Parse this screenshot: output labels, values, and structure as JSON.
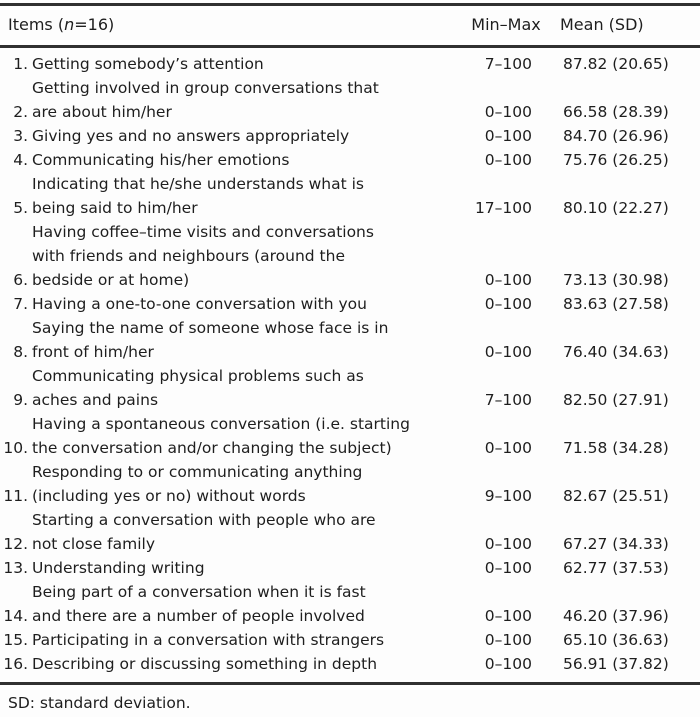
{
  "table": {
    "header": {
      "items_pre": "Items (",
      "items_n": "n",
      "items_post": "=16)",
      "minmax": "Min–Max",
      "mean": "Mean (SD)"
    },
    "rows": [
      {
        "num": "1.",
        "item": "Getting somebody’s attention",
        "minmax": "7–100",
        "mean": "87.82 (20.65)"
      },
      {
        "num": "2.",
        "item": "Getting involved in group conversations that\nare about him/her",
        "minmax": "0–100",
        "mean": "66.58 (28.39)"
      },
      {
        "num": "3.",
        "item": "Giving yes and no answers appropriately",
        "minmax": "0–100",
        "mean": "84.70 (26.96)"
      },
      {
        "num": "4.",
        "item": "Communicating his/her emotions",
        "minmax": "0–100",
        "mean": "75.76 (26.25)"
      },
      {
        "num": "5.",
        "item": "Indicating that he/she understands what is\nbeing said to him/her",
        "minmax": "17–100",
        "mean": "80.10 (22.27)"
      },
      {
        "num": "6.",
        "item": "Having coffee–time visits and conversations\nwith friends and neighbours (around the\nbedside or at home)",
        "minmax": "0–100",
        "mean": "73.13 (30.98)"
      },
      {
        "num": "7.",
        "item": "Having a one-to-one conversation with you",
        "minmax": "0–100",
        "mean": "83.63 (27.58)"
      },
      {
        "num": "8.",
        "item": "Saying the name of someone whose face is in\nfront of him/her",
        "minmax": "0–100",
        "mean": "76.40 (34.63)"
      },
      {
        "num": "9.",
        "item": "Communicating physical problems such as\naches and pains",
        "minmax": "7–100",
        "mean": "82.50 (27.91)"
      },
      {
        "num": "10.",
        "item": "Having a spontaneous conversation (i.e. starting\nthe conversation and/or changing the subject)",
        "minmax": "0–100",
        "mean": "71.58 (34.28)"
      },
      {
        "num": "11.",
        "item": "Responding to or communicating anything\n(including yes or no) without words",
        "minmax": "9–100",
        "mean": "82.67 (25.51)"
      },
      {
        "num": "12.",
        "item": "Starting a conversation with people who are\nnot close family",
        "minmax": "0–100",
        "mean": "67.27 (34.33)"
      },
      {
        "num": "13.",
        "item": "Understanding writing",
        "minmax": "0–100",
        "mean": "62.77 (37.53)"
      },
      {
        "num": "14.",
        "item": "Being part of a conversation when it is fast\nand there are a number of people involved",
        "minmax": "0–100",
        "mean": "46.20 (37.96)"
      },
      {
        "num": "15.",
        "item": "Participating in a conversation with strangers",
        "minmax": "0–100",
        "mean": "65.10 (36.63)"
      },
      {
        "num": "16.",
        "item": "Describing or discussing something in depth",
        "minmax": "0–100",
        "mean": "56.91 (37.82)"
      }
    ],
    "footnote": "SD: standard deviation."
  },
  "colors": {
    "text": "#1e1e1e",
    "rule": "#303030",
    "background": "#fdfdfd"
  }
}
